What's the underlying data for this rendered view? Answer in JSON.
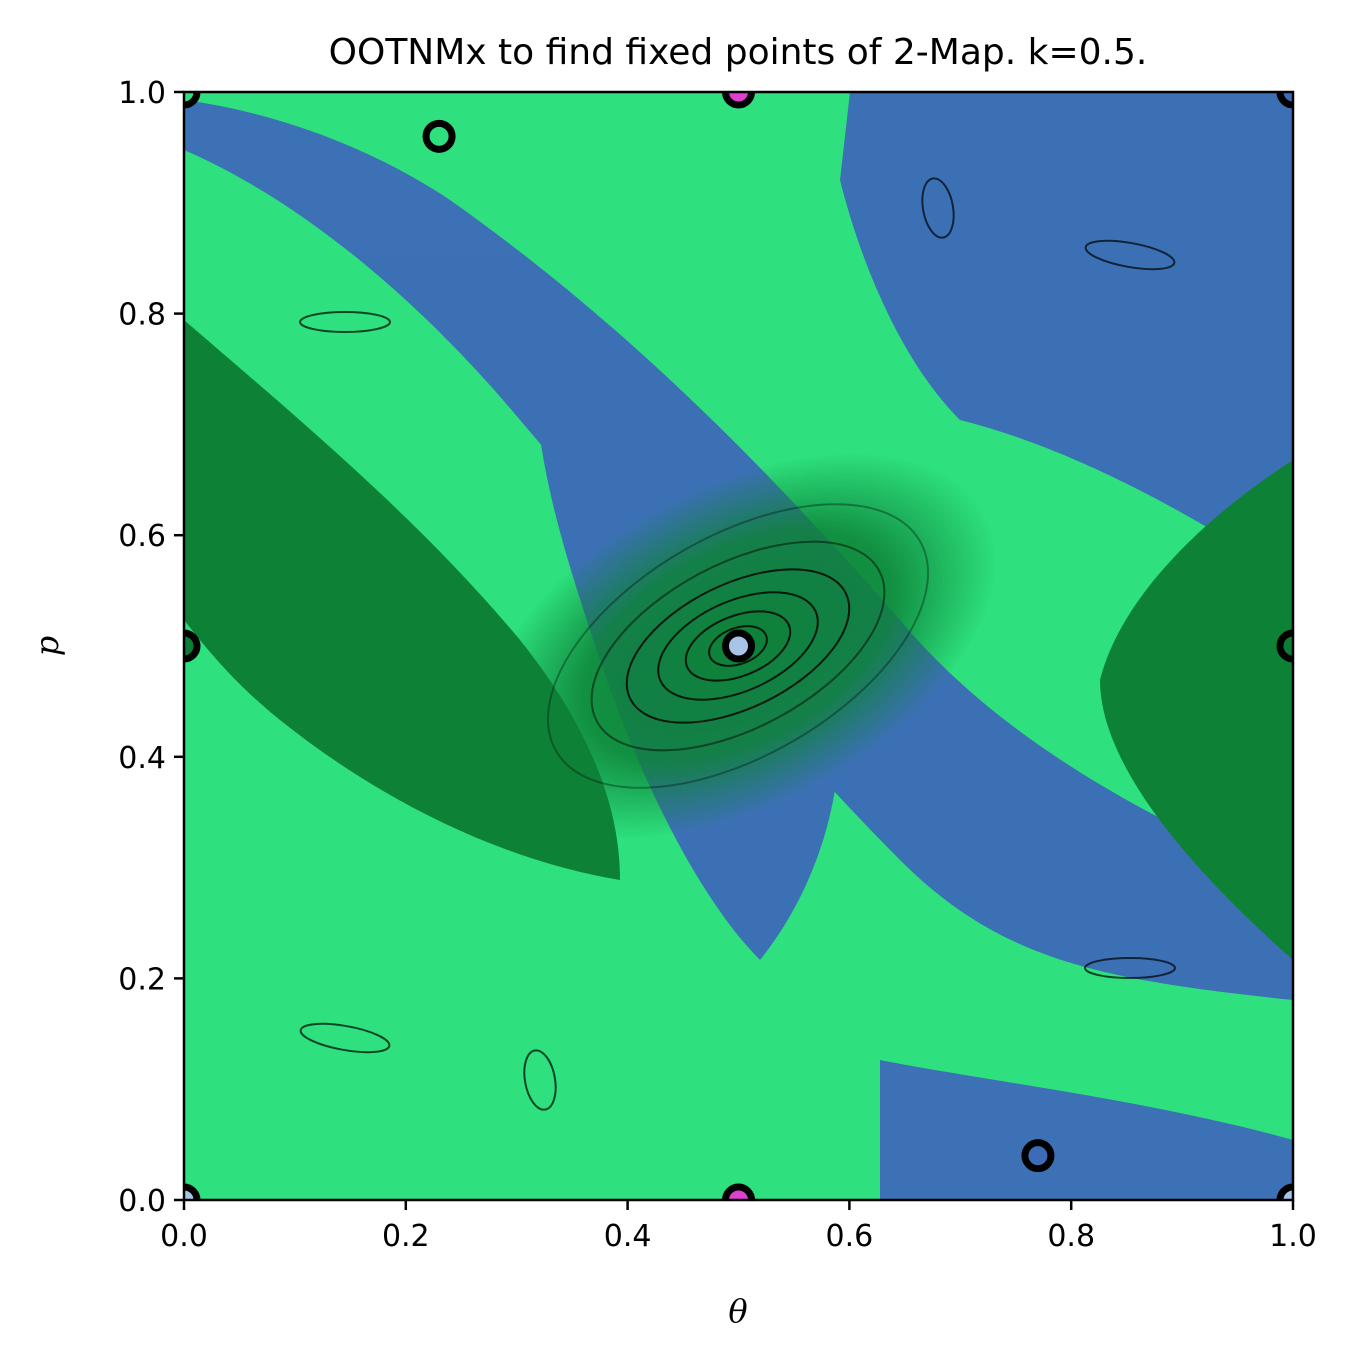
{
  "chart_data": {
    "type": "scatter",
    "title": "OOTNMx to find fixed points of 2-Map. k=0.5.",
    "xlabel": "θ",
    "ylabel": "p",
    "xlim": [
      0.0,
      1.0
    ],
    "ylim": [
      0.0,
      1.0
    ],
    "xticks": [
      "0.0",
      "0.2",
      "0.4",
      "0.6",
      "0.8",
      "1.0"
    ],
    "yticks": [
      "0.0",
      "0.2",
      "0.4",
      "0.6",
      "0.8",
      "1.0"
    ],
    "grid": false,
    "basin_colors": {
      "blue": "#3d6bb8",
      "light_green": "#2ee07e",
      "dark_green": "#0c7d34",
      "pink": "#e040d0"
    },
    "fixed_points": [
      {
        "theta": 0.5,
        "p": 0.5,
        "fill": "#a8c4e8"
      },
      {
        "theta": 0.0,
        "p": 0.5,
        "fill": "#0c7d34"
      },
      {
        "theta": 1.0,
        "p": 0.5,
        "fill": "#0c7d34"
      },
      {
        "theta": 0.5,
        "p": 1.0,
        "fill": "#e040d0"
      },
      {
        "theta": 0.5,
        "p": 0.0,
        "fill": "#e040d0"
      },
      {
        "theta": 0.0,
        "p": 1.0,
        "fill": "#2ee07e"
      },
      {
        "theta": 1.0,
        "p": 1.0,
        "fill": "#3d6bb8"
      },
      {
        "theta": 0.0,
        "p": 0.0,
        "fill": "#a8c4e8"
      },
      {
        "theta": 1.0,
        "p": 0.0,
        "fill": "#a8c4e8"
      },
      {
        "theta": 0.23,
        "p": 0.96,
        "fill": "#2ee07e"
      },
      {
        "theta": 0.77,
        "p": 0.04,
        "fill": "#3d6bb8"
      }
    ]
  }
}
